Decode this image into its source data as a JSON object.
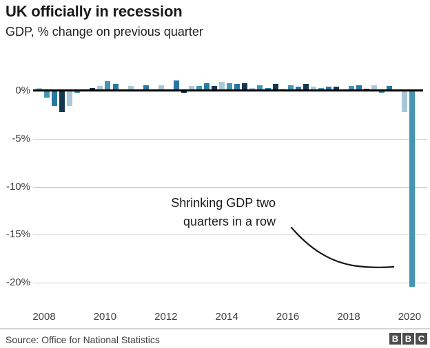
{
  "header": {
    "title": "UK officially in recession",
    "subtitle": "GDP, % change on previous quarter"
  },
  "chart_data": {
    "type": "bar",
    "title": "UK officially in recession",
    "subtitle": "GDP, % change on previous quarter",
    "unit": "%",
    "categories": [
      "2008 Q1",
      "2008 Q2",
      "2008 Q3",
      "2008 Q4",
      "2009 Q1",
      "2009 Q2",
      "2009 Q3",
      "2009 Q4",
      "2010 Q1",
      "2010 Q2",
      "2010 Q3",
      "2010 Q4",
      "2011 Q1",
      "2011 Q2",
      "2011 Q3",
      "2011 Q4",
      "2012 Q1",
      "2012 Q2",
      "2012 Q3",
      "2012 Q4",
      "2013 Q1",
      "2013 Q2",
      "2013 Q3",
      "2013 Q4",
      "2014 Q1",
      "2014 Q2",
      "2014 Q3",
      "2014 Q4",
      "2015 Q1",
      "2015 Q2",
      "2015 Q3",
      "2015 Q4",
      "2016 Q1",
      "2016 Q2",
      "2016 Q3",
      "2016 Q4",
      "2017 Q1",
      "2017 Q2",
      "2017 Q3",
      "2017 Q4",
      "2018 Q1",
      "2018 Q2",
      "2018 Q3",
      "2018 Q4",
      "2019 Q1",
      "2019 Q2",
      "2019 Q3",
      "2019 Q4",
      "2020 Q1",
      "2020 Q2"
    ],
    "values": [
      0.3,
      -0.7,
      -1.6,
      -2.2,
      -1.6,
      -0.2,
      0.1,
      0.3,
      0.5,
      1.0,
      0.7,
      0.1,
      0.5,
      0.1,
      0.6,
      0.1,
      0.6,
      -0.1,
      1.1,
      -0.2,
      0.5,
      0.5,
      0.8,
      0.5,
      0.9,
      0.8,
      0.7,
      0.8,
      0.3,
      0.6,
      0.3,
      0.7,
      0.2,
      0.6,
      0.4,
      0.7,
      0.4,
      0.3,
      0.4,
      0.4,
      0.1,
      0.5,
      0.6,
      0.2,
      0.6,
      -0.2,
      0.5,
      0.1,
      -2.2,
      -20.4
    ],
    "x_tick_labels": [
      "2008",
      "2010",
      "2012",
      "2014",
      "2016",
      "2018",
      "2020"
    ],
    "y_ticks": [
      {
        "label": "0%",
        "value": 0
      },
      {
        "label": "-5%",
        "value": -5
      },
      {
        "label": "-10%",
        "value": -10
      },
      {
        "label": "-15%",
        "value": -15
      },
      {
        "label": "-20%",
        "value": -20
      }
    ],
    "ylim": [
      -21.5,
      1.5
    ],
    "grid": "horizontal",
    "legend": "none",
    "quarter_colors": [
      "#a8c8d8",
      "#4596b3",
      "#2679a4",
      "#14384e"
    ],
    "annotation": {
      "line1": "Shrinking GDP two",
      "line2": "quarters in a row"
    }
  },
  "footer": {
    "source": "Source: Office for National Statistics",
    "logo_letters": [
      "B",
      "B",
      "C"
    ]
  }
}
